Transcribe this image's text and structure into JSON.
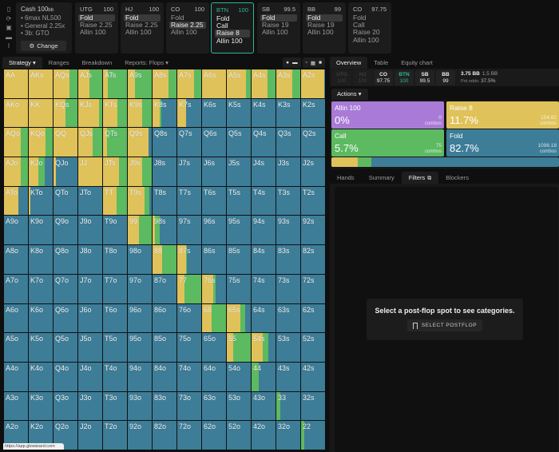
{
  "sidebar_icons": [
    "bookmark-icon",
    "power-icon",
    "save-icon",
    "gamepad-icon",
    "text-cursor-icon"
  ],
  "cash": {
    "title": "Cash",
    "stack": "100",
    "stack_unit": "bb",
    "lines": [
      "• 6max NL500",
      "• General 2.25x",
      "• 3b: GTO"
    ],
    "change_label": "Change"
  },
  "positions": [
    {
      "name": "UTG",
      "stack": "100",
      "actions": [
        "Fold",
        "Raise 2.25",
        "Allin 100"
      ],
      "selected": 0,
      "active": false
    },
    {
      "name": "HJ",
      "stack": "100",
      "actions": [
        "Fold",
        "Raise 2.25",
        "Allin 100"
      ],
      "selected": 0,
      "active": false
    },
    {
      "name": "CO",
      "stack": "100",
      "actions": [
        "Fold",
        "Raise 2.25",
        "Allin 100"
      ],
      "selected": 1,
      "active": false
    },
    {
      "name": "BTN",
      "stack": "100",
      "actions": [
        "Fold",
        "Call",
        "Raise 8",
        "Allin 100"
      ],
      "selected": 2,
      "active": true
    },
    {
      "name": "SB",
      "stack": "99.5",
      "actions": [
        "Fold",
        "Raise 19",
        "Allin 100"
      ],
      "selected": 0,
      "active": false
    },
    {
      "name": "BB",
      "stack": "99",
      "actions": [
        "Fold",
        "Raise 19",
        "Allin 100"
      ],
      "selected": 0,
      "active": false
    },
    {
      "name": "CO",
      "stack": "97.75",
      "actions": [
        "Fold",
        "Call",
        "Raise 20",
        "Allin 100"
      ],
      "selected": -1,
      "active": false
    }
  ],
  "left_tabs": [
    {
      "label": "Strategy",
      "dropdown": true,
      "active": true
    },
    {
      "label": "Ranges",
      "dropdown": false,
      "active": false
    },
    {
      "label": "Breakdown",
      "dropdown": false,
      "active": false
    },
    {
      "label": "Reports: Flops",
      "dropdown": true,
      "active": false
    }
  ],
  "view_icons": [
    "globe-icon",
    "table-icon",
    "grid-small-icon",
    "grid-medium-icon",
    "grid-large-icon"
  ],
  "colors": {
    "raise": "#e0c25a",
    "call": "#5cba61",
    "fold": "#3d7d98",
    "allin": "#a97bd6",
    "accent": "#2bb89a"
  },
  "hand_grid": {
    "labels": [
      [
        "AA",
        "AKs",
        "AQs",
        "AJs",
        "ATs",
        "A9s",
        "A8s",
        "A7s",
        "A6s",
        "A5s",
        "A4s",
        "A3s",
        "A2s"
      ],
      [
        "AKo",
        "KK",
        "KQs",
        "KJs",
        "KTs",
        "K9s",
        "K8s",
        "K7s",
        "K6s",
        "K5s",
        "K4s",
        "K3s",
        "K2s"
      ],
      [
        "AQo",
        "KQo",
        "QQ",
        "QJs",
        "QTs",
        "Q9s",
        "Q8s",
        "Q7s",
        "Q6s",
        "Q5s",
        "Q4s",
        "Q3s",
        "Q2s"
      ],
      [
        "AJo",
        "KJo",
        "QJo",
        "JJ",
        "JTs",
        "J9s",
        "J8s",
        "J7s",
        "J6s",
        "J5s",
        "J4s",
        "J3s",
        "J2s"
      ],
      [
        "ATo",
        "KTo",
        "QTo",
        "JTo",
        "TT",
        "T9s",
        "T8s",
        "T7s",
        "T6s",
        "T5s",
        "T4s",
        "T3s",
        "T2s"
      ],
      [
        "A9o",
        "K9o",
        "Q9o",
        "J9o",
        "T9o",
        "99",
        "98s",
        "97s",
        "96s",
        "95s",
        "94s",
        "93s",
        "92s"
      ],
      [
        "A8o",
        "K8o",
        "Q8o",
        "J8o",
        "T8o",
        "98o",
        "88",
        "87s",
        "86s",
        "85s",
        "84s",
        "83s",
        "82s"
      ],
      [
        "A7o",
        "K7o",
        "Q7o",
        "J7o",
        "T7o",
        "97o",
        "87o",
        "77",
        "76s",
        "75s",
        "74s",
        "73s",
        "72s"
      ],
      [
        "A6o",
        "K6o",
        "Q6o",
        "J6o",
        "T6o",
        "96o",
        "86o",
        "76o",
        "66",
        "65s",
        "64s",
        "63s",
        "62s"
      ],
      [
        "A5o",
        "K5o",
        "Q5o",
        "J5o",
        "T5o",
        "95o",
        "85o",
        "75o",
        "65o",
        "55",
        "54s",
        "53s",
        "52s"
      ],
      [
        "A4o",
        "K4o",
        "Q4o",
        "J4o",
        "T4o",
        "94o",
        "84o",
        "74o",
        "64o",
        "54o",
        "44",
        "43s",
        "42s"
      ],
      [
        "A3o",
        "K3o",
        "Q3o",
        "J3o",
        "T3o",
        "93o",
        "83o",
        "73o",
        "63o",
        "53o",
        "43o",
        "33",
        "32s"
      ],
      [
        "A2o",
        "K2o",
        "Q2o",
        "J2o",
        "T2o",
        "92o",
        "82o",
        "72o",
        "62o",
        "52o",
        "42o",
        "32o",
        "22"
      ]
    ],
    "strategy_raise_call_fold": [
      [
        [
          1,
          0,
          0
        ],
        [
          1,
          0,
          0
        ],
        [
          0.65,
          0.35,
          0
        ],
        [
          0.45,
          0.55,
          0
        ],
        [
          0.2,
          0.8,
          0
        ],
        [
          0.3,
          0.7,
          0
        ],
        [
          0.65,
          0.35,
          0
        ],
        [
          0.7,
          0.3,
          0
        ],
        [
          1,
          0,
          0
        ],
        [
          0.8,
          0.2,
          0
        ],
        [
          0.65,
          0.35,
          0
        ],
        [
          0.65,
          0.35,
          0
        ],
        [
          0.95,
          0,
          0.05
        ]
      ],
      [
        [
          1,
          0,
          0
        ],
        [
          1,
          0,
          0
        ],
        [
          0.5,
          0.5,
          0
        ],
        [
          0.85,
          0.15,
          0
        ],
        [
          0.6,
          0.4,
          0
        ],
        [
          0.6,
          0.4,
          0
        ],
        [
          0.3,
          0.07,
          0.63
        ],
        [
          0.35,
          0,
          0.65
        ],
        [
          0,
          0,
          1
        ],
        [
          0,
          0,
          1
        ],
        [
          0,
          0,
          1
        ],
        [
          0,
          0,
          1
        ],
        [
          0,
          0,
          1
        ]
      ],
      [
        [
          0.7,
          0.3,
          0
        ],
        [
          0.7,
          0.3,
          0
        ],
        [
          1,
          0,
          0
        ],
        [
          0.6,
          0.4,
          0
        ],
        [
          0.15,
          0.85,
          0
        ],
        [
          0.85,
          0,
          0.15
        ],
        [
          0,
          0,
          1
        ],
        [
          0,
          0,
          1
        ],
        [
          0,
          0,
          1
        ],
        [
          0,
          0,
          1
        ],
        [
          0,
          0,
          1
        ],
        [
          0,
          0,
          1
        ],
        [
          0,
          0,
          1
        ]
      ],
      [
        [
          0.7,
          0.3,
          0
        ],
        [
          0.4,
          0.25,
          0.35
        ],
        [
          0.1,
          0,
          0.9
        ],
        [
          1,
          0,
          0
        ],
        [
          0.65,
          0.35,
          0
        ],
        [
          0.6,
          0.4,
          0
        ],
        [
          0,
          0,
          1
        ],
        [
          0,
          0,
          1
        ],
        [
          0,
          0,
          1
        ],
        [
          0,
          0,
          1
        ],
        [
          0,
          0,
          1
        ],
        [
          0,
          0,
          1
        ],
        [
          0,
          0,
          1
        ]
      ],
      [
        [
          0.6,
          0,
          0.4
        ],
        [
          0.05,
          0,
          0.95
        ],
        [
          0,
          0,
          1
        ],
        [
          0,
          0,
          1
        ],
        [
          0.55,
          0.45,
          0
        ],
        [
          0.7,
          0.2,
          0.1
        ],
        [
          0,
          0,
          1
        ],
        [
          0,
          0,
          1
        ],
        [
          0,
          0,
          1
        ],
        [
          0,
          0,
          1
        ],
        [
          0,
          0,
          1
        ],
        [
          0,
          0,
          1
        ],
        [
          0,
          0,
          1
        ]
      ],
      [
        [
          0,
          0,
          1
        ],
        [
          0,
          0,
          1
        ],
        [
          0,
          0,
          1
        ],
        [
          0,
          0,
          1
        ],
        [
          0,
          0,
          1
        ],
        [
          0.45,
          0.55,
          0
        ],
        [
          0.1,
          0.2,
          0.7
        ],
        [
          0,
          0,
          1
        ],
        [
          0,
          0,
          1
        ],
        [
          0,
          0,
          1
        ],
        [
          0,
          0,
          1
        ],
        [
          0,
          0,
          1
        ],
        [
          0,
          0,
          1
        ]
      ],
      [
        [
          0,
          0,
          1
        ],
        [
          0,
          0,
          1
        ],
        [
          0,
          0,
          1
        ],
        [
          0,
          0,
          1
        ],
        [
          0,
          0,
          1
        ],
        [
          0,
          0,
          1
        ],
        [
          0.4,
          0.6,
          0
        ],
        [
          0.35,
          0.05,
          0.6
        ],
        [
          0,
          0,
          1
        ],
        [
          0,
          0,
          1
        ],
        [
          0,
          0,
          1
        ],
        [
          0,
          0,
          1
        ],
        [
          0,
          0,
          1
        ]
      ],
      [
        [
          0,
          0,
          1
        ],
        [
          0,
          0,
          1
        ],
        [
          0,
          0,
          1
        ],
        [
          0,
          0,
          1
        ],
        [
          0,
          0,
          1
        ],
        [
          0,
          0,
          1
        ],
        [
          0,
          0,
          1
        ],
        [
          0.3,
          0.7,
          0
        ],
        [
          0.45,
          0.1,
          0.45
        ],
        [
          0,
          0,
          1
        ],
        [
          0,
          0,
          1
        ],
        [
          0,
          0,
          1
        ],
        [
          0,
          0,
          1
        ]
      ],
      [
        [
          0,
          0,
          1
        ],
        [
          0,
          0,
          1
        ],
        [
          0,
          0,
          1
        ],
        [
          0,
          0,
          1
        ],
        [
          0,
          0,
          1
        ],
        [
          0,
          0,
          1
        ],
        [
          0,
          0,
          1
        ],
        [
          0,
          0,
          1
        ],
        [
          0.4,
          0.6,
          0
        ],
        [
          0.55,
          0.2,
          0.25
        ],
        [
          0,
          0,
          1
        ],
        [
          0,
          0,
          1
        ],
        [
          0,
          0,
          1
        ]
      ],
      [
        [
          0,
          0,
          1
        ],
        [
          0,
          0,
          1
        ],
        [
          0,
          0,
          1
        ],
        [
          0,
          0,
          1
        ],
        [
          0,
          0,
          1
        ],
        [
          0,
          0,
          1
        ],
        [
          0,
          0,
          1
        ],
        [
          0,
          0,
          1
        ],
        [
          0,
          0,
          1
        ],
        [
          0.25,
          0.75,
          0
        ],
        [
          0.45,
          0.25,
          0.3
        ],
        [
          0,
          0,
          1
        ],
        [
          0,
          0,
          1
        ]
      ],
      [
        [
          0,
          0,
          1
        ],
        [
          0,
          0,
          1
        ],
        [
          0,
          0,
          1
        ],
        [
          0,
          0,
          1
        ],
        [
          0,
          0,
          1
        ],
        [
          0,
          0,
          1
        ],
        [
          0,
          0,
          1
        ],
        [
          0,
          0,
          1
        ],
        [
          0,
          0,
          1
        ],
        [
          0,
          0,
          1
        ],
        [
          0,
          0.3,
          0.7
        ],
        [
          0,
          0,
          1
        ],
        [
          0,
          0,
          1
        ]
      ],
      [
        [
          0,
          0,
          1
        ],
        [
          0,
          0,
          1
        ],
        [
          0,
          0,
          1
        ],
        [
          0,
          0,
          1
        ],
        [
          0,
          0,
          1
        ],
        [
          0,
          0,
          1
        ],
        [
          0,
          0,
          1
        ],
        [
          0,
          0,
          1
        ],
        [
          0,
          0,
          1
        ],
        [
          0,
          0,
          1
        ],
        [
          0,
          0,
          1
        ],
        [
          0,
          0.15,
          0.85
        ],
        [
          0,
          0,
          1
        ]
      ],
      [
        [
          0,
          0,
          1
        ],
        [
          0,
          0,
          1
        ],
        [
          0,
          0,
          1
        ],
        [
          0,
          0,
          1
        ],
        [
          0,
          0,
          1
        ],
        [
          0,
          0,
          1
        ],
        [
          0,
          0,
          1
        ],
        [
          0,
          0,
          1
        ],
        [
          0,
          0,
          1
        ],
        [
          0,
          0,
          1
        ],
        [
          0,
          0,
          1
        ],
        [
          0,
          0,
          1
        ],
        [
          0,
          0.12,
          0.88
        ]
      ]
    ]
  },
  "url_hint": "https://app.gtowizard.com",
  "right_tabs": [
    {
      "label": "Overview",
      "active": true
    },
    {
      "label": "Table",
      "active": false
    },
    {
      "label": "Equity chart",
      "active": false
    }
  ],
  "seats": [
    {
      "name": "UTG",
      "stack": "100",
      "state": "dim"
    },
    {
      "name": "HJ",
      "stack": "100",
      "state": "dim"
    },
    {
      "name": "CO",
      "stack": "97.75",
      "state": "normal"
    },
    {
      "name": "BTN",
      "stack": "100",
      "state": "btn"
    },
    {
      "name": "SB",
      "stack": "99.5",
      "state": "normal"
    },
    {
      "name": "BB",
      "stack": "99",
      "state": "normal"
    }
  ],
  "pot": {
    "pot_bb": "3.75 BB",
    "to_call": "1.5 BB",
    "odds_label": "Pot odds:",
    "odds_value": "37.5%"
  },
  "actions_tab": "Actions",
  "actions": [
    {
      "name": "Allin 100",
      "pct": "0%",
      "combos": "0",
      "combos_label": "combos",
      "color_key": "allin"
    },
    {
      "name": "Raise 8",
      "pct": "11.7%",
      "combos": "154.82",
      "combos_label": "combos",
      "color_key": "raise"
    },
    {
      "name": "Call",
      "pct": "5.7%",
      "combos": "75",
      "combos_label": "combos",
      "color_key": "call"
    },
    {
      "name": "Fold",
      "pct": "82.7%",
      "combos": "1096.18",
      "combos_label": "combos",
      "color_key": "fold"
    }
  ],
  "frequency_bar": [
    {
      "key": "raise",
      "value": 11.7
    },
    {
      "key": "call",
      "value": 5.7
    },
    {
      "key": "fold",
      "value": 82.7
    }
  ],
  "bottom_tabs": [
    {
      "label": "Hands",
      "active": false
    },
    {
      "label": "Summary",
      "active": false
    },
    {
      "label": "Filters",
      "active": true,
      "icon": "filter-copy-icon"
    },
    {
      "label": "Blockers",
      "active": false
    }
  ],
  "postflop": {
    "message": "Select a post-flop spot to see categories.",
    "button_label": "SELECT POSTFLOP"
  }
}
